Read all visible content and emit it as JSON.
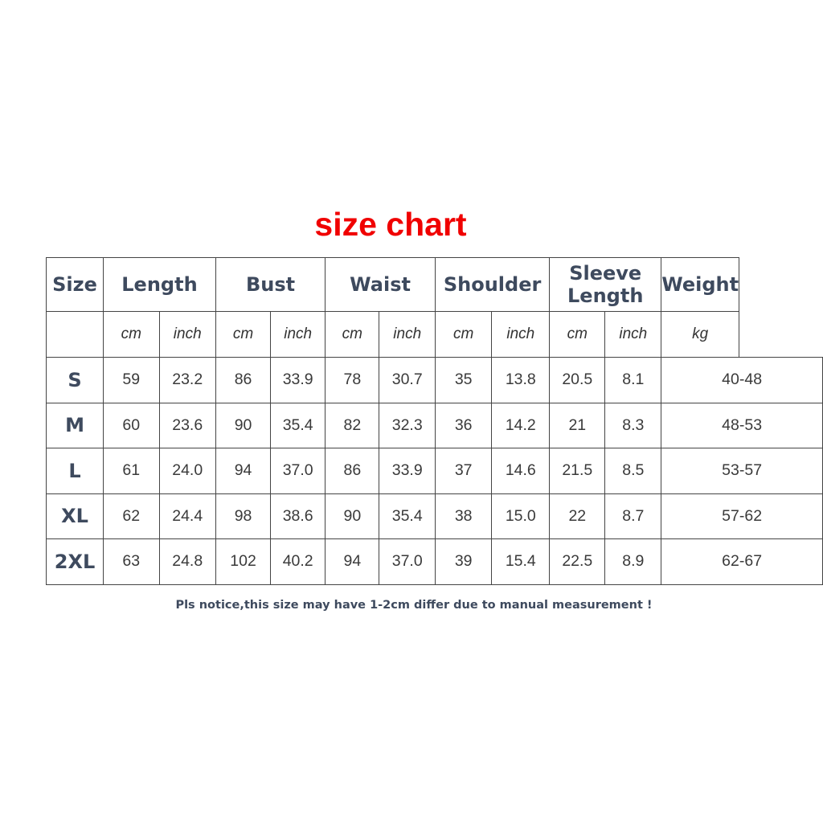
{
  "title": "size chart",
  "headers": [
    "Size",
    "Length",
    "Bust",
    "Waist",
    "Shoulder",
    "Sleeve Length",
    "Weight"
  ],
  "units": [
    "cm",
    "inch",
    "cm",
    "inch",
    "cm",
    "inch",
    "cm",
    "inch",
    "cm",
    "inch",
    "kg"
  ],
  "rows": [
    [
      "S",
      "59",
      "23.2",
      "86",
      "33.9",
      "78",
      "30.7",
      "35",
      "13.8",
      "20.5",
      "8.1",
      "40-48"
    ],
    [
      "M",
      "60",
      "23.6",
      "90",
      "35.4",
      "82",
      "32.3",
      "36",
      "14.2",
      "21",
      "8.3",
      "48-53"
    ],
    [
      "L",
      "61",
      "24.0",
      "94",
      "37.0",
      "86",
      "33.9",
      "37",
      "14.6",
      "21.5",
      "8.5",
      "53-57"
    ],
    [
      "XL",
      "62",
      "24.4",
      "98",
      "38.6",
      "90",
      "35.4",
      "38",
      "15.0",
      "22",
      "8.7",
      "57-62"
    ],
    [
      "2XL",
      "63",
      "24.8",
      "102",
      "40.2",
      "94",
      "37.0",
      "39",
      "15.4",
      "22.5",
      "8.9",
      "62-67"
    ]
  ],
  "note": "Pls notice,this size may have 1-2cm differ due to manual measurement !",
  "colors": {
    "title": "#f00000",
    "header_text": "#3e4a5e",
    "border": "#444444"
  }
}
